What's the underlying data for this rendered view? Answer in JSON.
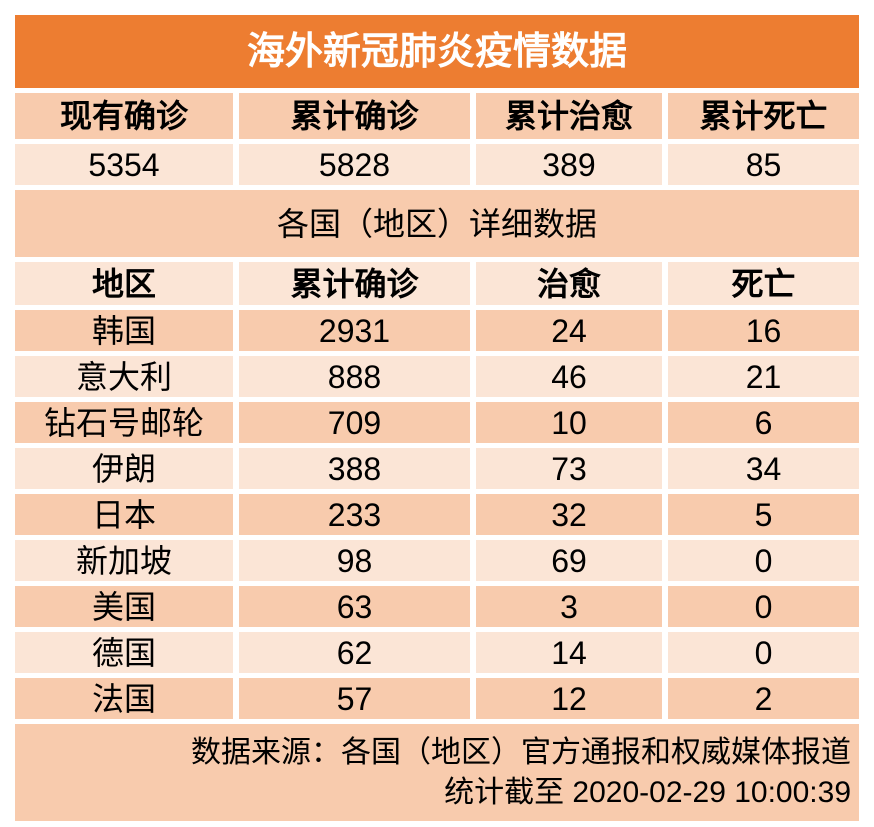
{
  "colors": {
    "accent_orange": "#ED7D31",
    "band_medium": "#F8CBAD",
    "band_light": "#FBE5D6",
    "title_text": "#FFFFFF",
    "body_text": "#000000"
  },
  "chart_data": {
    "type": "table",
    "title": "海外新冠肺炎疫情数据",
    "summary_columns": [
      "现有确诊",
      "累计确诊",
      "累计治愈",
      "累计死亡"
    ],
    "summary_values": [
      5354,
      5828,
      389,
      85
    ],
    "section_title": "各国（地区）详细数据",
    "columns": [
      "地区",
      "累计确诊",
      "治愈",
      "死亡"
    ],
    "rows": [
      [
        "韩国",
        2931,
        24,
        16
      ],
      [
        "意大利",
        888,
        46,
        21
      ],
      [
        "钻石号邮轮",
        709,
        10,
        6
      ],
      [
        "伊朗",
        388,
        73,
        34
      ],
      [
        "日本",
        233,
        32,
        5
      ],
      [
        "新加坡",
        98,
        69,
        0
      ],
      [
        "美国",
        63,
        3,
        0
      ],
      [
        "德国",
        62,
        14,
        0
      ],
      [
        "法国",
        57,
        12,
        2
      ]
    ],
    "footer": {
      "source": "数据来源：各国（地区）官方通报和权威媒体报道",
      "as_of": "统计截至 2020-02-29 10:00:39"
    }
  }
}
